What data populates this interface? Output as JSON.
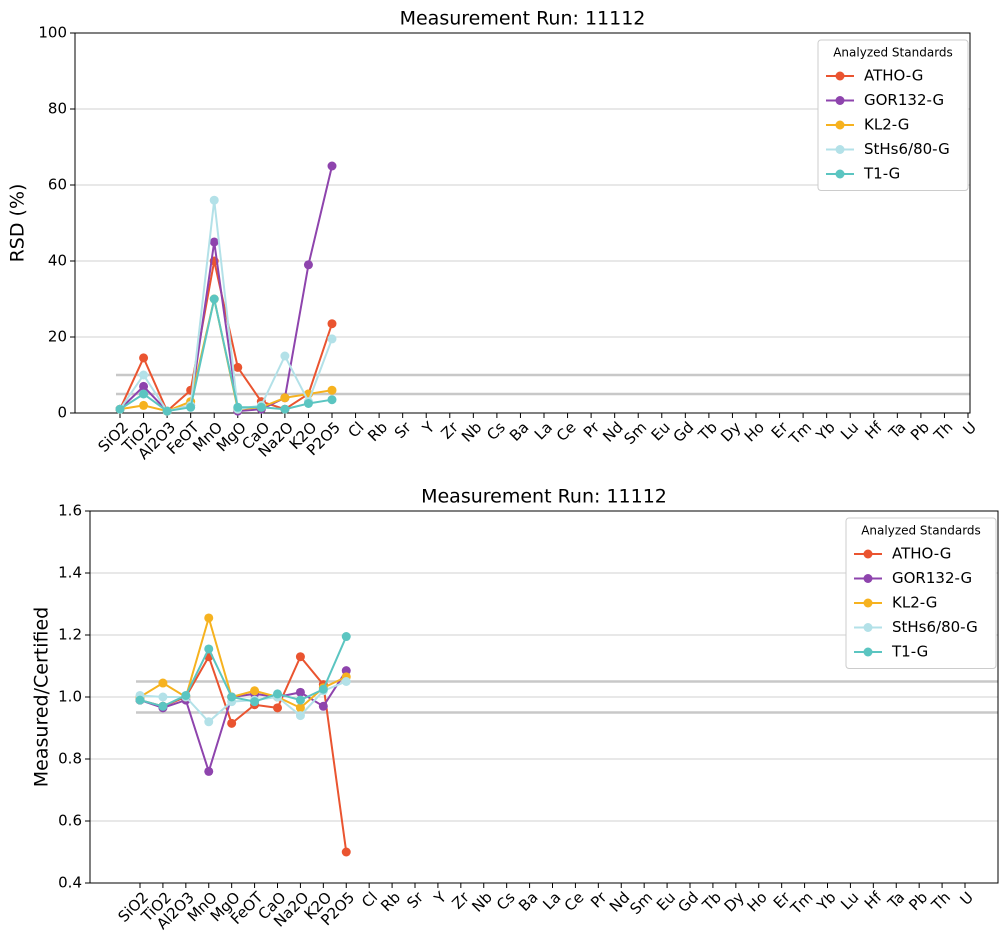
{
  "chart_data": [
    {
      "type": "line",
      "title": "Measurement Run: 11112",
      "ylabel": "RSD (%)",
      "categories": [
        "SiO2",
        "TiO2",
        "Al2O3",
        "FeOT",
        "MnO",
        "MgO",
        "CaO",
        "Na2O",
        "K2O",
        "P2O5",
        "Cl",
        "Rb",
        "Sr",
        "Y",
        "Zr",
        "Nb",
        "Cs",
        "Ba",
        "La",
        "Ce",
        "Pr",
        "Nd",
        "Sm",
        "Eu",
        "Gd",
        "Tb",
        "Dy",
        "Ho",
        "Er",
        "Tm",
        "Yb",
        "Lu",
        "Hf",
        "Ta",
        "Pb",
        "Th",
        "U"
      ],
      "ylim": [
        0,
        100
      ],
      "yticks": [
        0,
        20,
        40,
        60,
        80,
        100
      ],
      "grid": "y",
      "reference_lines": [
        5,
        10
      ],
      "legend_title": "Analyzed Standards",
      "legend_position": "upper right",
      "series": [
        {
          "name": "ATHO-G",
          "color": "#ea5430",
          "values": [
            1,
            14.5,
            0.5,
            6,
            40,
            12,
            3,
            1,
            5,
            23.5,
            null,
            null,
            null,
            null,
            null,
            null,
            null,
            null,
            null,
            null,
            null,
            null,
            null,
            null,
            null,
            null,
            null,
            null,
            null,
            null,
            null,
            null,
            null,
            null,
            null,
            null,
            null
          ]
        },
        {
          "name": "GOR132-G",
          "color": "#8e44ad",
          "values": [
            1,
            7,
            0.5,
            2,
            45,
            0.5,
            1,
            4,
            39,
            65,
            null,
            null,
            null,
            null,
            null,
            null,
            null,
            null,
            null,
            null,
            null,
            null,
            null,
            null,
            null,
            null,
            null,
            null,
            null,
            null,
            null,
            null,
            null,
            null,
            null,
            null,
            null
          ]
        },
        {
          "name": "KL2-G",
          "color": "#f6b21f",
          "values": [
            1,
            2,
            0.5,
            3,
            30,
            1,
            1.5,
            4,
            5,
            6,
            null,
            null,
            null,
            null,
            null,
            null,
            null,
            null,
            null,
            null,
            null,
            null,
            null,
            null,
            null,
            null,
            null,
            null,
            null,
            null,
            null,
            null,
            null,
            null,
            null,
            null,
            null
          ]
        },
        {
          "name": "StHs6/80-G",
          "color": "#b3e1e8",
          "values": [
            1,
            10,
            0.5,
            2,
            56,
            1,
            2,
            15,
            3,
            19.5,
            null,
            null,
            null,
            null,
            null,
            null,
            null,
            null,
            null,
            null,
            null,
            null,
            null,
            null,
            null,
            null,
            null,
            null,
            null,
            null,
            null,
            null,
            null,
            null,
            null,
            null,
            null
          ]
        },
        {
          "name": "T1-G",
          "color": "#5bc5c1",
          "values": [
            1,
            5,
            0.5,
            1.5,
            30,
            1.5,
            1.5,
            1,
            2.5,
            3.5,
            null,
            null,
            null,
            null,
            null,
            null,
            null,
            null,
            null,
            null,
            null,
            null,
            null,
            null,
            null,
            null,
            null,
            null,
            null,
            null,
            null,
            null,
            null,
            null,
            null,
            null,
            null
          ]
        }
      ]
    },
    {
      "type": "line",
      "title": "Measurement Run: 11112",
      "ylabel": "Measured/Certified",
      "categories": [
        "SiO2",
        "TiO2",
        "Al2O3",
        "MnO",
        "MgO",
        "FeOT",
        "CaO",
        "Na2O",
        "K2O",
        "P2O5",
        "Cl",
        "Rb",
        "Sr",
        "Y",
        "Zr",
        "Nb",
        "Cs",
        "Ba",
        "La",
        "Ce",
        "Pr",
        "Nd",
        "Sm",
        "Eu",
        "Gd",
        "Tb",
        "Dy",
        "Ho",
        "Er",
        "Tm",
        "Yb",
        "Lu",
        "Hf",
        "Ta",
        "Pb",
        "Th",
        "U"
      ],
      "ylim": [
        0.4,
        1.6
      ],
      "yticks": [
        {
          "value": 0.4,
          "label": "0.4"
        },
        {
          "value": 0.6,
          "label": "0.6"
        },
        {
          "value": 0.8,
          "label": "0.8"
        },
        {
          "value": 1,
          "label": "1.0"
        },
        {
          "value": 1.2,
          "label": "1.2"
        },
        {
          "value": 1.4,
          "label": "1.4"
        },
        {
          "value": 1.6,
          "label": "1.6"
        }
      ],
      "grid": "y",
      "reference_lines": [
        0.95,
        1.05
      ],
      "legend_title": "Analyzed Standards",
      "legend_position": "upper right",
      "series": [
        {
          "name": "ATHO-G",
          "color": "#ea5430",
          "values": [
            0.99,
            0.97,
            1.0,
            1.13,
            0.915,
            0.975,
            0.965,
            1.13,
            1.04,
            0.5,
            null,
            null,
            null,
            null,
            null,
            null,
            null,
            null,
            null,
            null,
            null,
            null,
            null,
            null,
            null,
            null,
            null,
            null,
            null,
            null,
            null,
            null,
            null,
            null,
            null,
            null,
            null
          ]
        },
        {
          "name": "GOR132-G",
          "color": "#8e44ad",
          "values": [
            0.99,
            0.965,
            0.99,
            0.76,
            1.0,
            1.01,
            1.0,
            1.015,
            0.97,
            1.085,
            null,
            null,
            null,
            null,
            null,
            null,
            null,
            null,
            null,
            null,
            null,
            null,
            null,
            null,
            null,
            null,
            null,
            null,
            null,
            null,
            null,
            null,
            null,
            null,
            null,
            null,
            null
          ]
        },
        {
          "name": "KL2-G",
          "color": "#f6b21f",
          "values": [
            1.0,
            1.045,
            1.0,
            1.255,
            1.0,
            1.02,
            1.0,
            0.965,
            1.03,
            1.065,
            null,
            null,
            null,
            null,
            null,
            null,
            null,
            null,
            null,
            null,
            null,
            null,
            null,
            null,
            null,
            null,
            null,
            null,
            null,
            null,
            null,
            null,
            null,
            null,
            null,
            null,
            null
          ]
        },
        {
          "name": "StHs6/80-G",
          "color": "#b3e1e8",
          "values": [
            1.005,
            1.0,
            1.0,
            0.92,
            0.985,
            0.99,
            1.0,
            0.94,
            1.02,
            1.05,
            null,
            null,
            null,
            null,
            null,
            null,
            null,
            null,
            null,
            null,
            null,
            null,
            null,
            null,
            null,
            null,
            null,
            null,
            null,
            null,
            null,
            null,
            null,
            null,
            null,
            null,
            null
          ]
        },
        {
          "name": "T1-G",
          "color": "#5bc5c1",
          "values": [
            0.99,
            0.97,
            1.005,
            1.155,
            1.0,
            0.985,
            1.01,
            0.99,
            1.025,
            1.195,
            null,
            null,
            null,
            null,
            null,
            null,
            null,
            null,
            null,
            null,
            null,
            null,
            null,
            null,
            null,
            null,
            null,
            null,
            null,
            null,
            null,
            null,
            null,
            null,
            null,
            null,
            null
          ]
        }
      ]
    }
  ]
}
